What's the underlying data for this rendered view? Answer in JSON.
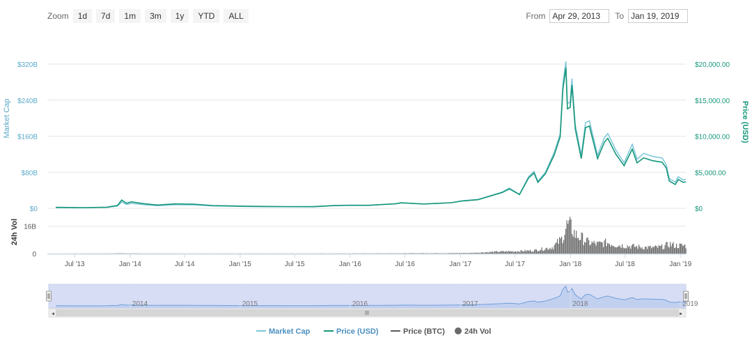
{
  "toolbar": {
    "zoom_label": "Zoom",
    "zoom_buttons": [
      "1d",
      "7d",
      "1m",
      "3m",
      "1y",
      "YTD",
      "ALL"
    ],
    "from_label": "From",
    "from_value": "Apr 29, 2013",
    "to_label": "To",
    "to_value": "Jan 19, 2019"
  },
  "colors": {
    "market_cap": "#7cc6da",
    "price_usd": "#16977a",
    "price_btc": "#5c5c5c",
    "volume": "#6b6b6b",
    "left_axis": "#5aa9c9",
    "right_axis": "#16977a",
    "navigator_fill": "#d7ddf5",
    "navigator_line": "#6e9fd8"
  },
  "chart_data": {
    "type": "line",
    "x_range": [
      "2013-04-29",
      "2019-01-19"
    ],
    "left_axis": {
      "label": "Market Cap",
      "ticks": [
        "$0",
        "$80B",
        "$160B",
        "$240B",
        "$320B"
      ],
      "tick_values": [
        0,
        80,
        160,
        240,
        320
      ],
      "ylim": [
        0,
        320
      ]
    },
    "right_axis": {
      "label": "Price (USD)",
      "ticks": [
        "$0",
        "$5,000.00",
        "$10,000.00",
        "$15,000.00",
        "$20,000.00"
      ],
      "tick_values": [
        0,
        5000,
        10000,
        15000,
        20000
      ],
      "ylim": [
        0,
        20000
      ]
    },
    "volume_axis": {
      "label": "24h Vol",
      "ticks": [
        "0",
        "16B"
      ],
      "tick_values": [
        0,
        16
      ]
    },
    "x_ticks": [
      "Jul '13",
      "Jan '14",
      "Jul '14",
      "Jan '15",
      "Jul '15",
      "Jan '16",
      "Jul '16",
      "Jan '17",
      "Jul '17",
      "Jan '18",
      "Jul '18",
      "Jan '19"
    ],
    "x_tick_dates": [
      "2013-07-01",
      "2014-01-01",
      "2014-07-01",
      "2015-01-01",
      "2015-07-01",
      "2016-01-01",
      "2016-07-01",
      "2017-01-01",
      "2017-07-01",
      "2018-01-01",
      "2018-07-01",
      "2019-01-01"
    ],
    "navigator_ticks": [
      "2014",
      "2015",
      "2016",
      "2017",
      "2018",
      "2019"
    ],
    "navigator_tick_dates": [
      "2014-01-01",
      "2015-01-01",
      "2016-01-01",
      "2017-01-01",
      "2018-01-01",
      "2019-01-01"
    ],
    "legend": [
      "Market Cap",
      "Price (USD)",
      "Price (BTC)",
      "24h Vol"
    ],
    "legend_position": "bottom-center",
    "grid": true,
    "series": [
      {
        "name": "Price (USD)",
        "x": [
          "2013-04-29",
          "2013-08-01",
          "2013-10-15",
          "2013-11-20",
          "2013-12-04",
          "2013-12-20",
          "2014-01-05",
          "2014-02-15",
          "2014-04-01",
          "2014-06-01",
          "2014-08-01",
          "2014-10-01",
          "2015-01-01",
          "2015-03-01",
          "2015-06-01",
          "2015-09-01",
          "2015-11-05",
          "2016-01-01",
          "2016-03-01",
          "2016-06-01",
          "2016-06-18",
          "2016-09-01",
          "2016-12-01",
          "2017-01-05",
          "2017-03-01",
          "2017-05-20",
          "2017-06-12",
          "2017-07-16",
          "2017-08-15",
          "2017-09-02",
          "2017-09-15",
          "2017-10-10",
          "2017-11-08",
          "2017-11-28",
          "2017-12-07",
          "2017-12-17",
          "2017-12-22",
          "2017-12-31",
          "2018-01-06",
          "2018-01-17",
          "2018-02-06",
          "2018-02-20",
          "2018-03-05",
          "2018-04-01",
          "2018-04-24",
          "2018-05-05",
          "2018-06-01",
          "2018-06-28",
          "2018-07-25",
          "2018-08-10",
          "2018-09-01",
          "2018-10-01",
          "2018-11-01",
          "2018-11-15",
          "2018-11-25",
          "2018-12-15",
          "2018-12-25",
          "2019-01-10",
          "2019-01-19"
        ],
        "values": [
          140,
          100,
          150,
          400,
          1150,
          700,
          900,
          650,
          450,
          620,
          580,
          390,
          310,
          270,
          240,
          230,
          380,
          430,
          420,
          640,
          760,
          600,
          770,
          1000,
          1200,
          2200,
          2700,
          1900,
          4200,
          4900,
          3600,
          4800,
          7400,
          9900,
          16500,
          19500,
          13800,
          14000,
          17100,
          11000,
          6900,
          11200,
          11400,
          6900,
          9200,
          9700,
          7500,
          5900,
          8200,
          6300,
          7000,
          6600,
          6400,
          5600,
          3800,
          3300,
          4000,
          3600,
          3650
        ]
      },
      {
        "name": "Market Cap",
        "x": [
          "2013-04-29",
          "2013-08-01",
          "2013-10-15",
          "2013-11-20",
          "2013-12-04",
          "2013-12-20",
          "2014-01-05",
          "2014-02-15",
          "2014-04-01",
          "2014-06-01",
          "2014-08-01",
          "2014-10-01",
          "2015-01-01",
          "2015-03-01",
          "2015-06-01",
          "2015-09-01",
          "2015-11-05",
          "2016-01-01",
          "2016-03-01",
          "2016-06-01",
          "2016-06-18",
          "2016-09-01",
          "2016-12-01",
          "2017-01-05",
          "2017-03-01",
          "2017-05-20",
          "2017-06-12",
          "2017-07-16",
          "2017-08-15",
          "2017-09-02",
          "2017-09-15",
          "2017-10-10",
          "2017-11-08",
          "2017-11-28",
          "2017-12-07",
          "2017-12-17",
          "2017-12-22",
          "2017-12-31",
          "2018-01-06",
          "2018-01-17",
          "2018-02-06",
          "2018-02-20",
          "2018-03-05",
          "2018-04-01",
          "2018-04-24",
          "2018-05-05",
          "2018-06-01",
          "2018-06-28",
          "2018-07-25",
          "2018-08-10",
          "2018-09-01",
          "2018-10-01",
          "2018-11-01",
          "2018-11-15",
          "2018-11-25",
          "2018-12-15",
          "2018-12-25",
          "2019-01-10",
          "2019-01-19"
        ],
        "values": [
          1.5,
          1.2,
          1.9,
          5,
          14,
          8.5,
          11,
          8,
          5.8,
          8,
          7.5,
          5.2,
          4.2,
          3.7,
          3.4,
          3.3,
          5.5,
          6.5,
          6.4,
          10,
          12,
          9.6,
          12.3,
          16.5,
          20,
          36,
          45,
          31,
          70,
          82,
          60,
          80,
          124,
          165,
          277,
          326,
          232,
          236,
          288,
          185,
          118,
          190,
          194,
          118,
          157,
          166,
          129,
          101,
          142,
          109,
          122,
          115,
          112,
          97,
          66,
          58,
          70,
          63,
          64
        ]
      },
      {
        "name": "24h Vol",
        "x": [
          "2013-04-29",
          "2013-11-01",
          "2013-12-01",
          "2014-01-01",
          "2014-06-01",
          "2015-01-01",
          "2016-01-01",
          "2016-12-01",
          "2017-02-01",
          "2017-05-01",
          "2017-07-01",
          "2017-09-01",
          "2017-11-01",
          "2017-12-01",
          "2017-12-10",
          "2017-12-20",
          "2018-01-05",
          "2018-01-15",
          "2018-02-05",
          "2018-03-01",
          "2018-04-01",
          "2018-05-01",
          "2018-06-01",
          "2018-07-01",
          "2018-08-01",
          "2018-09-01",
          "2018-10-01",
          "2018-11-01",
          "2018-11-25",
          "2018-12-15",
          "2019-01-19"
        ],
        "values": [
          0,
          0.1,
          0.2,
          0.1,
          0.05,
          0.05,
          0.1,
          0.3,
          0.4,
          1.2,
          1.5,
          2,
          4,
          9,
          13,
          18,
          16,
          12,
          10,
          7,
          6,
          7,
          5.5,
          5,
          4.5,
          4,
          3.8,
          4.2,
          6,
          5,
          5
        ]
      }
    ]
  }
}
